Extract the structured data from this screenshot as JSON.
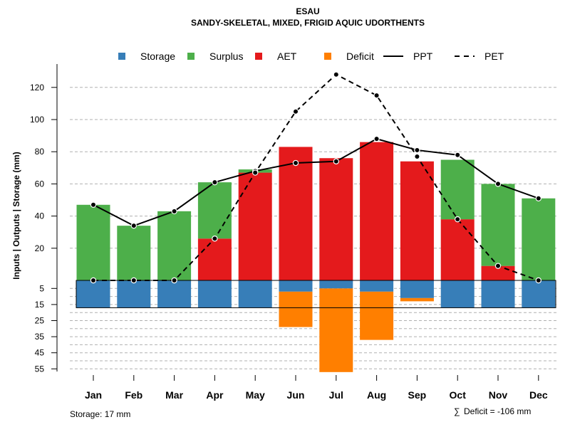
{
  "chart_data": {
    "type": "bar",
    "title": "ESAU",
    "subtitle": "SANDY-SKELETAL, MIXED, FRIGID AQUIC UDORTHENTS",
    "ylabel": "Inputs | Outputs | Storage    (mm)",
    "categories": [
      "Jan",
      "Feb",
      "Mar",
      "Apr",
      "May",
      "Jun",
      "Jul",
      "Aug",
      "Sep",
      "Oct",
      "Nov",
      "Dec"
    ],
    "upper_ticks": [
      "20",
      "40",
      "60",
      "80",
      "100",
      "120"
    ],
    "lower_ticks": [
      "5",
      "15",
      "25",
      "35",
      "45",
      "55"
    ],
    "upper_ylim": [
      0,
      130
    ],
    "lower_ylim": [
      0,
      57
    ],
    "grid": true,
    "legend_position": "top",
    "legend": [
      {
        "name": "Storage",
        "kind": "square",
        "color": "#377eb8"
      },
      {
        "name": "Surplus",
        "kind": "square",
        "color": "#4daf4a"
      },
      {
        "name": "AET",
        "kind": "square",
        "color": "#e41a1c"
      },
      {
        "name": "Deficit",
        "kind": "square",
        "color": "#ff7f00"
      },
      {
        "name": "PPT",
        "kind": "solid-line",
        "color": "#000000"
      },
      {
        "name": "PET",
        "kind": "dashed-line",
        "color": "#000000"
      }
    ],
    "series": [
      {
        "name": "AET",
        "color": "#e41a1c",
        "values": [
          0,
          0,
          0,
          26,
          67,
          83,
          76,
          86,
          74,
          38,
          9,
          0
        ]
      },
      {
        "name": "Surplus",
        "color": "#4daf4a",
        "values": [
          47,
          34,
          43,
          35,
          2,
          0,
          0,
          0,
          0,
          37,
          51,
          51
        ]
      },
      {
        "name": "Storage",
        "color": "#377eb8",
        "values": [
          17,
          17,
          17,
          17,
          17,
          7,
          5,
          7,
          11,
          17,
          17,
          17
        ]
      },
      {
        "name": "Deficit",
        "color": "#ff7f00",
        "values": [
          0,
          0,
          0,
          0,
          0,
          22,
          52,
          30,
          2,
          0,
          0,
          0
        ]
      },
      {
        "name": "PPT",
        "color": "#000000",
        "values": [
          47,
          34,
          43,
          61,
          68,
          73,
          74,
          88,
          81,
          78,
          60,
          51
        ]
      },
      {
        "name": "PET",
        "color": "#000000",
        "values": [
          0,
          0,
          0,
          26,
          67,
          105,
          128,
          115,
          77,
          38,
          9,
          0
        ]
      }
    ],
    "storage_band_depth": 17
  },
  "footer": {
    "storage_text": "Storage: 17 mm",
    "deficit_symbol": "∑",
    "deficit_text": "Deficit = -106 mm"
  }
}
